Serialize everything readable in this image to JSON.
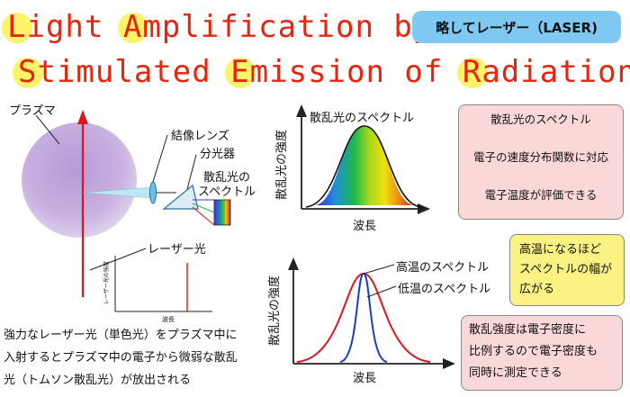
{
  "title": {
    "line1": [
      {
        "cap": "L",
        "rest": "ight "
      },
      {
        "cap": "A",
        "rest": "mplification by"
      }
    ],
    "line2": [
      {
        "cap": "S",
        "rest": "timulated "
      },
      {
        "cap": "E",
        "rest": "mission of "
      },
      {
        "cap": "R",
        "rest": "adiation"
      }
    ]
  },
  "badge": "略してレーザー（LASER)",
  "apparatus": {
    "plasma": "プラズマ",
    "lens": "結像レンズ",
    "spectrometer": "分光器",
    "spectrum_line1": "散乱光の",
    "spectrum_line2": "スペクトル",
    "laser_light": "レーザー光",
    "mini_ylabel": "レーザー光の強度",
    "mini_xlabel": "波長"
  },
  "description": [
    "強力なレーザー光（単色光）をプラズマ中に",
    "入射するとプラズマ中の電子から微弱な散乱",
    "光（トムソン散乱光）が放出される"
  ],
  "top_chart": {
    "title": "散乱光のスペクトル",
    "ylabel": "散乱光の強度",
    "xlabel": "波長"
  },
  "bottom_chart": {
    "ylabel": "散乱光の強度",
    "xlabel": "波長",
    "high_label": "高温のスペクトル",
    "low_label": "低温のスペクトル",
    "colors": {
      "high": "#e0141e",
      "low": "#1a3cc8"
    }
  },
  "flow_box": {
    "step1": "散乱光のスペクトル",
    "step2": "電子の速度分布関数に対応",
    "step3": "電子温度が評価できる"
  },
  "yellow_box": [
    "高温になるほど",
    "スペクトルの幅が",
    "広がる"
  ],
  "density_box": [
    "散乱強度は電子密度に",
    "比例するので電子密度も",
    "同時に測定できる"
  ]
}
